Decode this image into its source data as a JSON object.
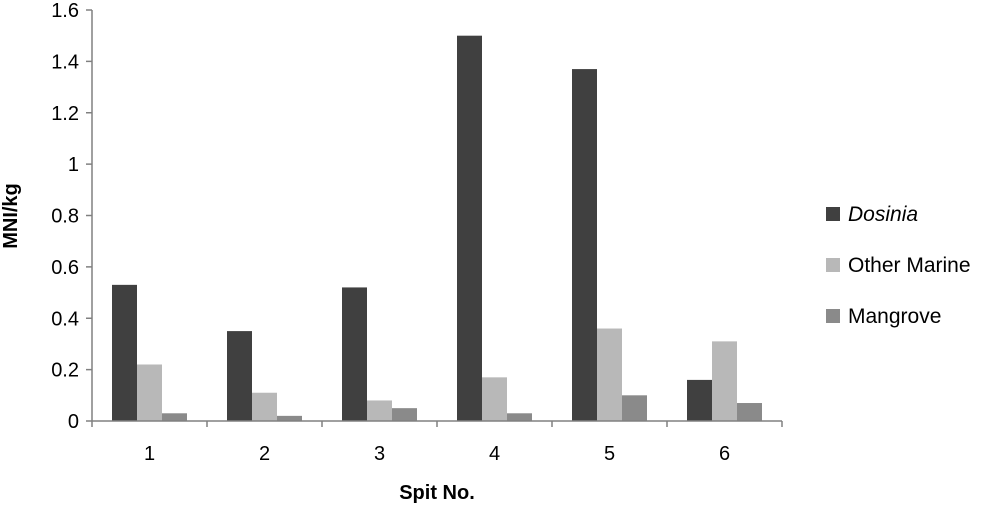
{
  "chart_data": {
    "type": "bar",
    "title": "",
    "xlabel": "Spit No.",
    "ylabel": "MNI/kg",
    "categories": [
      "1",
      "2",
      "3",
      "4",
      "5",
      "6"
    ],
    "ylim": [
      0,
      1.6
    ],
    "yticks": [
      0,
      0.2,
      0.4,
      0.6,
      0.8,
      1,
      1.2,
      1.4,
      1.6
    ],
    "ytick_labels": [
      "0",
      "0.2",
      "0.4",
      "0.6",
      "0.8",
      "1",
      "1.2",
      "1.4",
      "1.6"
    ],
    "grid": false,
    "legend_position": "right",
    "series": [
      {
        "name": "Dosinia",
        "italic": true,
        "color": "#404040",
        "values": [
          0.53,
          0.35,
          0.52,
          1.5,
          1.37,
          0.16
        ]
      },
      {
        "name": "Other Marine",
        "italic": false,
        "color": "#b8b8b8",
        "values": [
          0.22,
          0.11,
          0.08,
          0.17,
          0.36,
          0.31
        ]
      },
      {
        "name": "Mangrove",
        "italic": false,
        "color": "#8a8a8a",
        "values": [
          0.03,
          0.02,
          0.05,
          0.03,
          0.1,
          0.07
        ]
      }
    ]
  }
}
